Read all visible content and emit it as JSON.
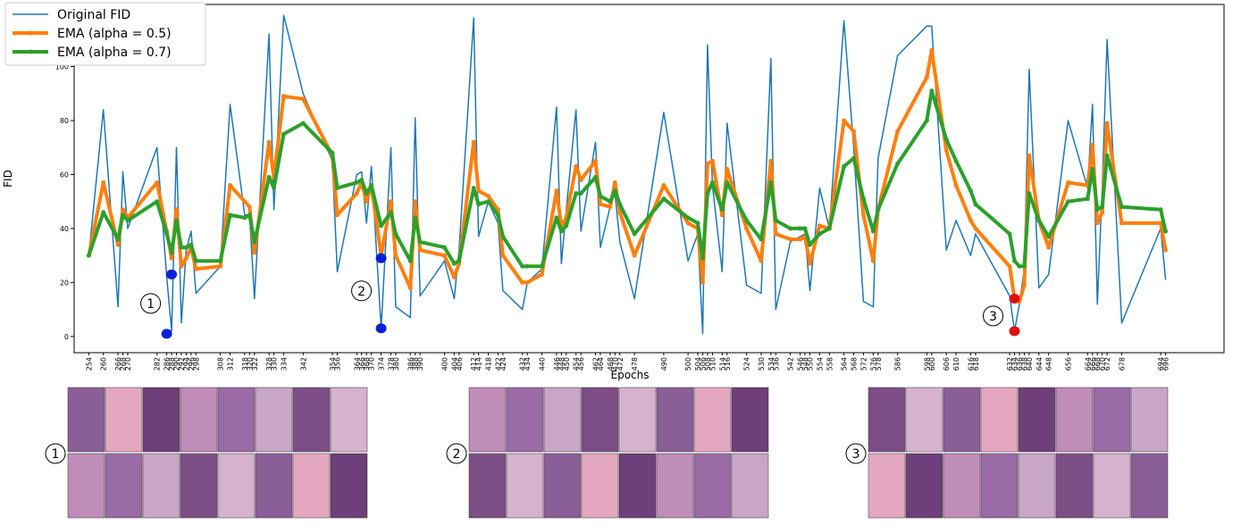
{
  "chart_data": {
    "type": "line",
    "ylabel": "FID",
    "xlabel": "Epochs",
    "xlim": [
      248,
      720
    ],
    "ylim": [
      -6,
      123
    ],
    "yticks": [
      0,
      20,
      40,
      60,
      80,
      100,
      120
    ],
    "legend": "upper left",
    "x": [
      254,
      260,
      266,
      268,
      270,
      282,
      286,
      288,
      290,
      292,
      294,
      296,
      298,
      308,
      312,
      318,
      320,
      322,
      328,
      330,
      334,
      342,
      354,
      356,
      364,
      366,
      368,
      370,
      374,
      378,
      380,
      386,
      388,
      390,
      400,
      404,
      406,
      412,
      414,
      418,
      422,
      424,
      432,
      434,
      440,
      446,
      448,
      450,
      454,
      456,
      462,
      464,
      468,
      470,
      472,
      478,
      490,
      500,
      504,
      506,
      508,
      510,
      514,
      516,
      524,
      530,
      534,
      536,
      542,
      546,
      548,
      550,
      554,
      558,
      564,
      568,
      572,
      576,
      578,
      586,
      598,
      600,
      606,
      610,
      616,
      618,
      632,
      634,
      636,
      638,
      640,
      644,
      648,
      656,
      664,
      666,
      668,
      670,
      672,
      678,
      694,
      696
    ],
    "series": [
      {
        "name": "Original FID",
        "color": "#1f77b4",
        "markers": false,
        "values": [
          30,
          84,
          11,
          61,
          40,
          70,
          22,
          2,
          70,
          5,
          32,
          39,
          16,
          26,
          86,
          45,
          45,
          14,
          112,
          47,
          119,
          90,
          65,
          24,
          60,
          61,
          42,
          63,
          3,
          70,
          11,
          7,
          81,
          15,
          28,
          14,
          32,
          118,
          37,
          50,
          42,
          17,
          10,
          20,
          25,
          85,
          27,
          47,
          84,
          39,
          72,
          33,
          48,
          53,
          35,
          14,
          83,
          28,
          38,
          1,
          108,
          56,
          24,
          79,
          19,
          16,
          103,
          10,
          35,
          37,
          38,
          17,
          55,
          40,
          117,
          70,
          13,
          11,
          66,
          104,
          115,
          115,
          32,
          43,
          30,
          38,
          15,
          2,
          12,
          25,
          99,
          18,
          23,
          80,
          55,
          86,
          12,
          55,
          110,
          5,
          40,
          21
        ]
      },
      {
        "name": "EMA (alpha = 0.5)",
        "color": "#ff7f0e",
        "markers": true,
        "values": [
          30,
          57,
          34,
          47,
          44,
          57,
          39,
          29,
          47,
          26,
          29,
          33,
          25,
          26,
          56,
          50,
          48,
          31,
          72,
          59,
          89,
          88,
          67,
          45,
          53,
          57,
          50,
          56,
          30,
          50,
          30,
          18,
          50,
          32,
          30,
          22,
          27,
          72,
          54,
          52,
          47,
          30,
          20,
          20,
          23,
          54,
          41,
          44,
          63,
          58,
          65,
          49,
          48,
          57,
          46,
          30,
          56,
          42,
          40,
          20,
          64,
          65,
          45,
          62,
          40,
          28,
          65,
          38,
          36,
          36,
          37,
          27,
          41,
          40,
          80,
          76,
          45,
          28,
          47,
          76,
          96,
          106,
          69,
          56,
          43,
          40,
          26,
          14,
          13,
          19,
          67,
          43,
          33,
          57,
          56,
          71,
          42,
          46,
          79,
          42,
          42,
          32
        ]
      },
      {
        "name": "EMA (alpha = 0.7)",
        "color": "#2ca02c",
        "markers": true,
        "values": [
          30,
          46,
          36,
          45,
          43,
          50,
          38,
          31,
          43,
          33,
          33,
          34,
          28,
          28,
          45,
          44,
          45,
          35,
          59,
          55,
          75,
          79,
          68,
          55,
          57,
          58,
          53,
          56,
          41,
          46,
          38,
          28,
          44,
          35,
          33,
          27,
          28,
          55,
          49,
          50,
          45,
          37,
          26,
          26,
          26,
          44,
          39,
          41,
          53,
          53,
          59,
          52,
          50,
          54,
          49,
          38,
          51,
          44,
          42,
          29,
          53,
          57,
          47,
          57,
          43,
          36,
          57,
          43,
          40,
          40,
          40,
          34,
          38,
          40,
          63,
          66,
          51,
          39,
          47,
          64,
          80,
          91,
          73,
          65,
          54,
          49,
          38,
          28,
          26,
          26,
          53,
          43,
          37,
          50,
          51,
          62,
          47,
          48,
          67,
          48,
          47,
          39
        ]
      }
    ],
    "highlights": [
      {
        "label": "1",
        "color": "#0a1fd6",
        "x": [
          286,
          288
        ],
        "values": [
          1,
          23
        ]
      },
      {
        "label": "2",
        "color": "#0a1fd6",
        "x": [
          374,
          374
        ],
        "values": [
          29,
          3
        ]
      },
      {
        "label": "3",
        "color": "#e01010",
        "x": [
          634,
          634
        ],
        "values": [
          14,
          2
        ]
      }
    ]
  }
}
